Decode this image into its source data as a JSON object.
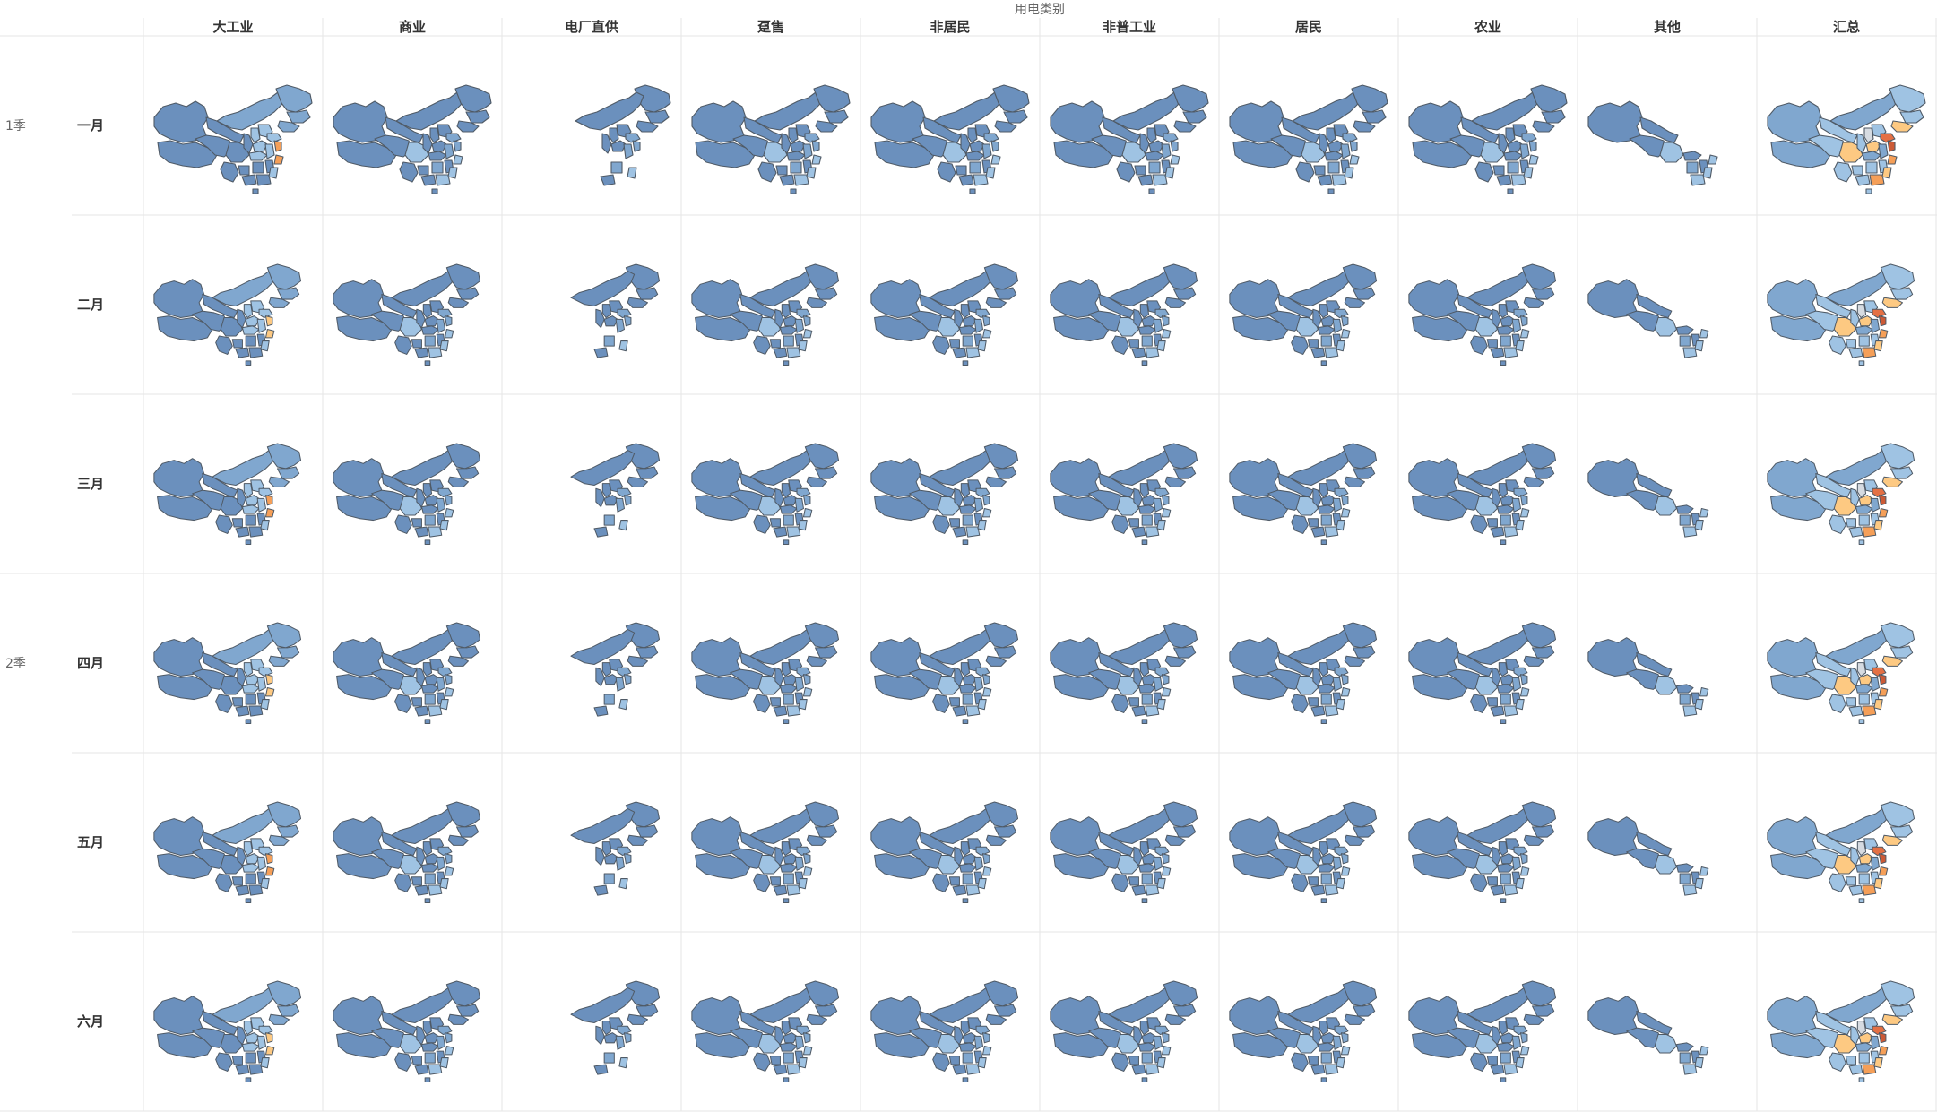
{
  "header": {
    "column_group_title": "用电类别"
  },
  "columns": [
    {
      "label": "大工业"
    },
    {
      "label": "商业"
    },
    {
      "label": "电厂直供"
    },
    {
      "label": "趸售"
    },
    {
      "label": "非居民"
    },
    {
      "label": "非普工业"
    },
    {
      "label": "居民"
    },
    {
      "label": "农业"
    },
    {
      "label": "其他"
    },
    {
      "label": "汇总"
    }
  ],
  "quarters": [
    {
      "label": "1季"
    },
    {
      "label": "2季"
    }
  ],
  "rows": [
    {
      "quarter": "1季",
      "label": "一月"
    },
    {
      "quarter": "1季",
      "label": "二月"
    },
    {
      "quarter": "1季",
      "label": "三月"
    },
    {
      "quarter": "2季",
      "label": "四月"
    },
    {
      "quarter": "2季",
      "label": "五月"
    },
    {
      "quarter": "2季",
      "label": "六月"
    }
  ],
  "colors": {
    "background": "#ffffff",
    "gridline": "#e6e6e6",
    "border": "#4f5a66",
    "dark_blue": "#6b90bd",
    "mid_blue": "#80a7cf",
    "light_blue": "#9fc3e3",
    "very_light_blue": "#b9d6ee",
    "grey": "#d6dbe1",
    "light_orange": "#fdc982",
    "orange": "#f59f58",
    "dark_orange": "#e47044",
    "red_orange": "#cc5a36"
  },
  "legend": {
    "shown": false
  }
}
